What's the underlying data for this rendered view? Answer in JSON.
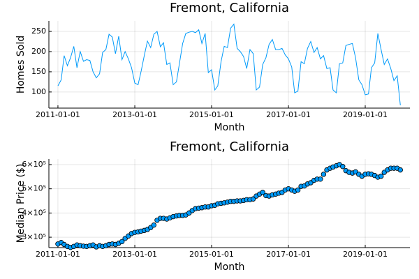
{
  "chart_data": [
    {
      "type": "line",
      "title": "Fremont, California",
      "x_label": "Month",
      "y_label": "Homes Sold",
      "color": "#009afa",
      "grid": true,
      "x": [
        "2011-01-01",
        "2011-02-01",
        "2011-03-01",
        "2011-04-01",
        "2011-05-01",
        "2011-06-01",
        "2011-07-01",
        "2011-08-01",
        "2011-09-01",
        "2011-10-01",
        "2011-11-01",
        "2011-12-01",
        "2012-01-01",
        "2012-02-01",
        "2012-03-01",
        "2012-04-01",
        "2012-05-01",
        "2012-06-01",
        "2012-07-01",
        "2012-08-01",
        "2012-09-01",
        "2012-10-01",
        "2012-11-01",
        "2012-12-01",
        "2013-01-01",
        "2013-02-01",
        "2013-03-01",
        "2013-04-01",
        "2013-05-01",
        "2013-06-01",
        "2013-07-01",
        "2013-08-01",
        "2013-09-01",
        "2013-10-01",
        "2013-11-01",
        "2013-12-01",
        "2014-01-01",
        "2014-02-01",
        "2014-03-01",
        "2014-04-01",
        "2014-05-01",
        "2014-06-01",
        "2014-07-01",
        "2014-08-01",
        "2014-09-01",
        "2014-10-01",
        "2014-11-01",
        "2014-12-01",
        "2015-01-01",
        "2015-02-01",
        "2015-03-01",
        "2015-04-01",
        "2015-05-01",
        "2015-06-01",
        "2015-07-01",
        "2015-08-01",
        "2015-09-01",
        "2015-10-01",
        "2015-11-01",
        "2015-12-01",
        "2016-01-01",
        "2016-02-01",
        "2016-03-01",
        "2016-04-01",
        "2016-05-01",
        "2016-06-01",
        "2016-07-01",
        "2016-08-01",
        "2016-09-01",
        "2016-10-01",
        "2016-11-01",
        "2016-12-01",
        "2017-01-01",
        "2017-02-01",
        "2017-03-01",
        "2017-04-01",
        "2017-05-01",
        "2017-06-01",
        "2017-07-01",
        "2017-08-01",
        "2017-09-01",
        "2017-10-01",
        "2017-11-01",
        "2017-12-01",
        "2018-01-01",
        "2018-02-01",
        "2018-03-01",
        "2018-04-01",
        "2018-05-01",
        "2018-06-01",
        "2018-07-01",
        "2018-08-01",
        "2018-09-01",
        "2018-10-01",
        "2018-11-01",
        "2018-12-01",
        "2019-01-01",
        "2019-02-01",
        "2019-03-01",
        "2019-04-01",
        "2019-05-01",
        "2019-06-01",
        "2019-07-01",
        "2019-08-01",
        "2019-09-01",
        "2019-10-01",
        "2019-11-01",
        "2019-12-01"
      ],
      "values": [
        115,
        130,
        190,
        165,
        185,
        213,
        160,
        200,
        176,
        180,
        178,
        150,
        135,
        145,
        198,
        205,
        243,
        236,
        195,
        238,
        180,
        200,
        182,
        160,
        122,
        118,
        150,
        190,
        226,
        210,
        243,
        250,
        212,
        222,
        168,
        172,
        118,
        125,
        170,
        220,
        245,
        248,
        250,
        247,
        254,
        220,
        245,
        148,
        155,
        105,
        115,
        175,
        213,
        210,
        258,
        268,
        208,
        200,
        188,
        158,
        205,
        195,
        105,
        112,
        168,
        185,
        218,
        230,
        205,
        205,
        208,
        192,
        182,
        162,
        98,
        102,
        175,
        170,
        208,
        225,
        198,
        210,
        182,
        190,
        158,
        160,
        105,
        98,
        170,
        172,
        215,
        218,
        220,
        185,
        130,
        118,
        93,
        95,
        160,
        172,
        245,
        205,
        168,
        182,
        158,
        128,
        140,
        67
      ],
      "xlim": [
        "2010-10-07",
        "2020-03-01"
      ],
      "xticks": [
        "2011-01-01",
        "2013-01-01",
        "2015-01-01",
        "2017-01-01",
        "2019-01-01"
      ],
      "ylim": [
        60,
        276
      ],
      "yticks": [
        100,
        150,
        200,
        250
      ]
    },
    {
      "type": "scatter",
      "title": "Fremont, California",
      "x_label": "Month",
      "y_label": "Median Price ($)",
      "color": "#009afa",
      "grid": true,
      "x": [
        "2011-01-01",
        "2011-02-01",
        "2011-03-01",
        "2011-04-01",
        "2011-05-01",
        "2011-06-01",
        "2011-07-01",
        "2011-08-01",
        "2011-09-01",
        "2011-10-01",
        "2011-11-01",
        "2011-12-01",
        "2012-01-01",
        "2012-02-01",
        "2012-03-01",
        "2012-04-01",
        "2012-05-01",
        "2012-06-01",
        "2012-07-01",
        "2012-08-01",
        "2012-09-01",
        "2012-10-01",
        "2012-11-01",
        "2012-12-01",
        "2013-01-01",
        "2013-02-01",
        "2013-03-01",
        "2013-04-01",
        "2013-05-01",
        "2013-06-01",
        "2013-07-01",
        "2013-08-01",
        "2013-09-01",
        "2013-10-01",
        "2013-11-01",
        "2013-12-01",
        "2014-01-01",
        "2014-02-01",
        "2014-03-01",
        "2014-04-01",
        "2014-05-01",
        "2014-06-01",
        "2014-07-01",
        "2014-08-01",
        "2014-09-01",
        "2014-10-01",
        "2014-11-01",
        "2014-12-01",
        "2015-01-01",
        "2015-02-01",
        "2015-03-01",
        "2015-04-01",
        "2015-05-01",
        "2015-06-01",
        "2015-07-01",
        "2015-08-01",
        "2015-09-01",
        "2015-10-01",
        "2015-11-01",
        "2015-12-01",
        "2016-01-01",
        "2016-02-01",
        "2016-03-01",
        "2016-04-01",
        "2016-05-01",
        "2016-06-01",
        "2016-07-01",
        "2016-08-01",
        "2016-09-01",
        "2016-10-01",
        "2016-11-01",
        "2016-12-01",
        "2017-01-01",
        "2017-02-01",
        "2017-03-01",
        "2017-04-01",
        "2017-05-01",
        "2017-06-01",
        "2017-07-01",
        "2017-08-01",
        "2017-09-01",
        "2017-10-01",
        "2017-11-01",
        "2017-12-01",
        "2018-01-01",
        "2018-02-01",
        "2018-03-01",
        "2018-04-01",
        "2018-05-01",
        "2018-06-01",
        "2018-07-01",
        "2018-08-01",
        "2018-09-01",
        "2018-10-01",
        "2018-11-01",
        "2018-12-01",
        "2019-01-01",
        "2019-02-01",
        "2019-03-01",
        "2019-04-01",
        "2019-05-01",
        "2019-06-01",
        "2019-07-01",
        "2019-08-01",
        "2019-09-01",
        "2019-10-01",
        "2019-11-01",
        "2019-12-01"
      ],
      "values": [
        272000,
        278000,
        270000,
        262000,
        258000,
        262000,
        268000,
        265000,
        263000,
        262000,
        265000,
        268000,
        260000,
        265000,
        262000,
        265000,
        270000,
        272000,
        270000,
        275000,
        282000,
        295000,
        305000,
        315000,
        320000,
        322000,
        325000,
        328000,
        332000,
        340000,
        350000,
        370000,
        378000,
        378000,
        375000,
        380000,
        385000,
        388000,
        390000,
        390000,
        392000,
        400000,
        410000,
        418000,
        420000,
        422000,
        425000,
        425000,
        430000,
        432000,
        438000,
        440000,
        442000,
        445000,
        448000,
        448000,
        450000,
        450000,
        452000,
        455000,
        455000,
        458000,
        470000,
        478000,
        485000,
        472000,
        470000,
        475000,
        478000,
        482000,
        485000,
        495000,
        500000,
        495000,
        490000,
        495000,
        510000,
        512000,
        520000,
        525000,
        535000,
        540000,
        540000,
        560000,
        578000,
        585000,
        590000,
        595000,
        600000,
        592000,
        575000,
        568000,
        565000,
        570000,
        560000,
        552000,
        560000,
        562000,
        560000,
        555000,
        548000,
        552000,
        568000,
        578000,
        585000,
        585000,
        585000,
        578000
      ],
      "xlim": [
        "2010-10-07",
        "2020-03-01"
      ],
      "xticks": [
        "2011-01-01",
        "2013-01-01",
        "2015-01-01",
        "2017-01-01",
        "2019-01-01"
      ],
      "ylim": [
        257000,
        623000
      ],
      "yticks": [
        {
          "value": 300000,
          "label": "3×10⁵"
        },
        {
          "value": 400000,
          "label": "4×10⁵"
        },
        {
          "value": 500000,
          "label": "5×10⁵"
        },
        {
          "value": 600000,
          "label": "6×10⁵"
        }
      ]
    }
  ]
}
